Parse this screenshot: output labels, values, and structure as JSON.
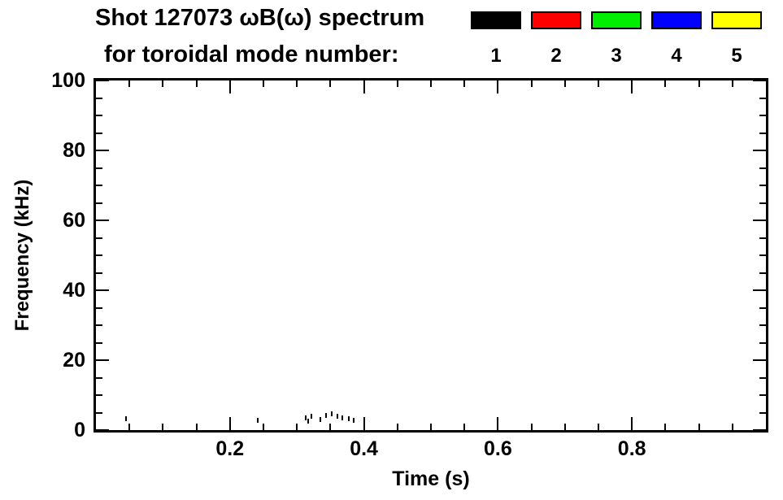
{
  "header": {
    "title_line1": "Shot 127073 ωB(ω) spectrum",
    "title_line2": "for toroidal mode number:"
  },
  "legend": {
    "swatch_border_color": "#000000",
    "modes": [
      {
        "label": "1",
        "color": "#000000"
      },
      {
        "label": "2",
        "color": "#ff0000"
      },
      {
        "label": "3",
        "color": "#00ee00"
      },
      {
        "label": "4",
        "color": "#0000ff"
      },
      {
        "label": "5",
        "color": "#ffff00"
      }
    ]
  },
  "axes": {
    "xlabel": "Time (s)",
    "ylabel": "Frequency (kHz)"
  },
  "chart_data": {
    "type": "scatter",
    "title": "Shot 127073 ωB(ω) spectrum for toroidal mode number: 1 2 3 4 5",
    "xlabel": "Time (s)",
    "ylabel": "Frequency (kHz)",
    "xlim": [
      0.0,
      1.0
    ],
    "ylim": [
      0,
      100
    ],
    "grid": false,
    "legend_position": "top-right",
    "x_major_ticks": [
      0.2,
      0.4,
      0.6,
      0.8
    ],
    "x_tick_labels": [
      "0.2",
      "0.4",
      "0.6",
      "0.8"
    ],
    "x_minor_step": 0.05,
    "y_major_ticks": [
      0,
      20,
      40,
      60,
      80,
      100
    ],
    "y_tick_labels": [
      "0",
      "20",
      "40",
      "60",
      "80",
      "100"
    ],
    "y_minor_step": 5,
    "series": [
      {
        "name": "n=1",
        "color": "#000000",
        "marker": "vertical-dash",
        "points": [
          [
            0.045,
            3.2
          ],
          [
            0.242,
            2.8
          ],
          [
            0.313,
            3.5
          ],
          [
            0.317,
            2.6
          ],
          [
            0.322,
            4.0
          ],
          [
            0.335,
            3.0
          ],
          [
            0.344,
            4.2
          ],
          [
            0.352,
            4.6
          ],
          [
            0.36,
            4.0
          ],
          [
            0.368,
            3.6
          ],
          [
            0.378,
            3.2
          ],
          [
            0.385,
            2.8
          ]
        ]
      },
      {
        "name": "n=2",
        "color": "#ff0000",
        "marker": "vertical-dash",
        "points": []
      },
      {
        "name": "n=3",
        "color": "#00ee00",
        "marker": "vertical-dash",
        "points": []
      },
      {
        "name": "n=4",
        "color": "#0000ff",
        "marker": "vertical-dash",
        "points": []
      },
      {
        "name": "n=5",
        "color": "#ffff00",
        "marker": "vertical-dash",
        "points": []
      }
    ]
  }
}
